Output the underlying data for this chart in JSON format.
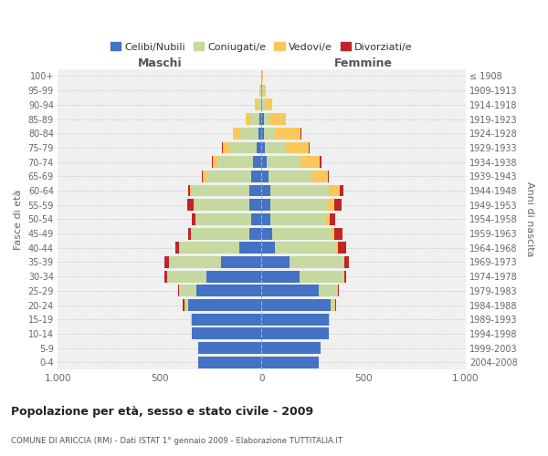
{
  "age_groups": [
    "0-4",
    "5-9",
    "10-14",
    "15-19",
    "20-24",
    "25-29",
    "30-34",
    "35-39",
    "40-44",
    "45-49",
    "50-54",
    "55-59",
    "60-64",
    "65-69",
    "70-74",
    "75-79",
    "80-84",
    "85-89",
    "90-94",
    "95-99",
    "100+"
  ],
  "birth_years": [
    "2004-2008",
    "1999-2003",
    "1994-1998",
    "1989-1993",
    "1984-1988",
    "1979-1983",
    "1974-1978",
    "1969-1973",
    "1964-1968",
    "1959-1963",
    "1954-1958",
    "1949-1953",
    "1944-1948",
    "1939-1943",
    "1934-1938",
    "1929-1933",
    "1924-1928",
    "1919-1923",
    "1914-1918",
    "1909-1913",
    "≤ 1908"
  ],
  "male": {
    "celibi": [
      310,
      310,
      340,
      340,
      360,
      320,
      270,
      200,
      110,
      60,
      50,
      60,
      60,
      50,
      40,
      25,
      15,
      10,
      4,
      2,
      0
    ],
    "coniugati": [
      0,
      0,
      0,
      5,
      15,
      80,
      190,
      250,
      290,
      280,
      270,
      270,
      280,
      220,
      175,
      130,
      90,
      45,
      15,
      5,
      2
    ],
    "vedovi": [
      0,
      0,
      0,
      0,
      5,
      5,
      5,
      5,
      5,
      5,
      5,
      5,
      10,
      20,
      25,
      35,
      35,
      25,
      15,
      5,
      2
    ],
    "divorziati": [
      0,
      0,
      0,
      0,
      5,
      5,
      10,
      20,
      20,
      15,
      15,
      30,
      10,
      5,
      5,
      5,
      0,
      0,
      0,
      0,
      0
    ]
  },
  "female": {
    "nubili": [
      280,
      290,
      330,
      330,
      340,
      280,
      185,
      135,
      65,
      50,
      45,
      45,
      45,
      35,
      25,
      15,
      10,
      10,
      4,
      2,
      0
    ],
    "coniugate": [
      0,
      0,
      0,
      5,
      15,
      90,
      215,
      265,
      300,
      290,
      270,
      280,
      290,
      210,
      165,
      100,
      60,
      30,
      10,
      5,
      2
    ],
    "vedove": [
      0,
      0,
      0,
      0,
      5,
      5,
      5,
      5,
      10,
      15,
      20,
      30,
      50,
      80,
      95,
      115,
      120,
      80,
      40,
      15,
      5
    ],
    "divorziate": [
      0,
      0,
      0,
      0,
      5,
      5,
      10,
      25,
      40,
      40,
      25,
      35,
      15,
      5,
      10,
      5,
      5,
      0,
      0,
      0,
      0
    ]
  },
  "colors": {
    "celibi": "#4472C4",
    "coniugati": "#C5D9A0",
    "vedovi": "#FAC85A",
    "divorziati": "#C0242A"
  },
  "title": "Popolazione per età, sesso e stato civile - 2009",
  "subtitle": "COMUNE DI ARICCIA (RM) - Dati ISTAT 1° gennaio 2009 - Elaborazione TUTTITALIA.IT",
  "xlabel_left": "Maschi",
  "xlabel_right": "Femmine",
  "ylabel_left": "Fasce di età",
  "ylabel_right": "Anni di nascita",
  "xlim": 1000,
  "bg_color": "#f0f0f0",
  "legend_labels": [
    "Celibi/Nubili",
    "Coniugati/e",
    "Vedovi/e",
    "Divorziati/e"
  ]
}
